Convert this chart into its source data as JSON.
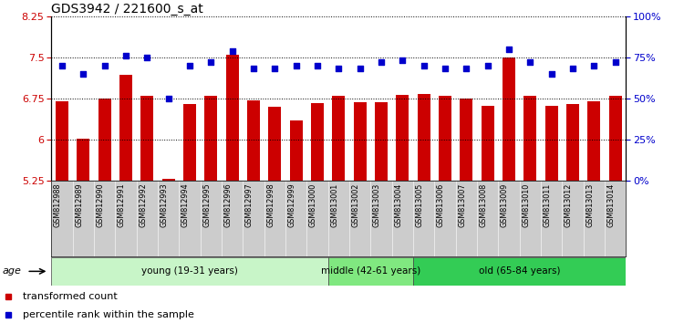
{
  "title": "GDS3942 / 221600_s_at",
  "samples": [
    "GSM812988",
    "GSM812989",
    "GSM812990",
    "GSM812991",
    "GSM812992",
    "GSM812993",
    "GSM812994",
    "GSM812995",
    "GSM812996",
    "GSM812997",
    "GSM812998",
    "GSM812999",
    "GSM813000",
    "GSM813001",
    "GSM813002",
    "GSM813003",
    "GSM813004",
    "GSM813005",
    "GSM813006",
    "GSM813007",
    "GSM813008",
    "GSM813009",
    "GSM813010",
    "GSM813011",
    "GSM813012",
    "GSM813013",
    "GSM813014"
  ],
  "bar_values": [
    6.7,
    6.02,
    6.75,
    7.18,
    6.8,
    5.28,
    6.65,
    6.8,
    7.55,
    6.72,
    6.6,
    6.35,
    6.67,
    6.8,
    6.68,
    6.68,
    6.82,
    6.83,
    6.8,
    6.75,
    6.62,
    7.5,
    6.8,
    6.62,
    6.65,
    6.7,
    6.8
  ],
  "dot_values": [
    70,
    65,
    70,
    76,
    75,
    50,
    70,
    72,
    79,
    68,
    68,
    70,
    70,
    68,
    68,
    72,
    73,
    70,
    68,
    68,
    70,
    80,
    72,
    65,
    68,
    70,
    72
  ],
  "groups": [
    {
      "label": "young (19-31 years)",
      "start": 0,
      "end": 13
    },
    {
      "label": "middle (42-61 years)",
      "start": 13,
      "end": 17
    },
    {
      "label": "old (65-84 years)",
      "start": 17,
      "end": 27
    }
  ],
  "group_colors": [
    "#c8f5c8",
    "#80e880",
    "#33cc55"
  ],
  "ylim_left": [
    5.25,
    8.25
  ],
  "ylim_right": [
    0,
    100
  ],
  "yticks_left": [
    5.25,
    6.0,
    6.75,
    7.5,
    8.25
  ],
  "yticks_right": [
    0,
    25,
    50,
    75,
    100
  ],
  "bar_color": "#cc0000",
  "dot_color": "#0000cc",
  "bar_width": 0.6,
  "legend_bar": "transformed count",
  "legend_dot": "percentile rank within the sample",
  "tick_label_color_left": "#cc0000",
  "tick_label_color_right": "#0000cc",
  "xtick_bg_color": "#cccccc",
  "title_fontsize": 10
}
